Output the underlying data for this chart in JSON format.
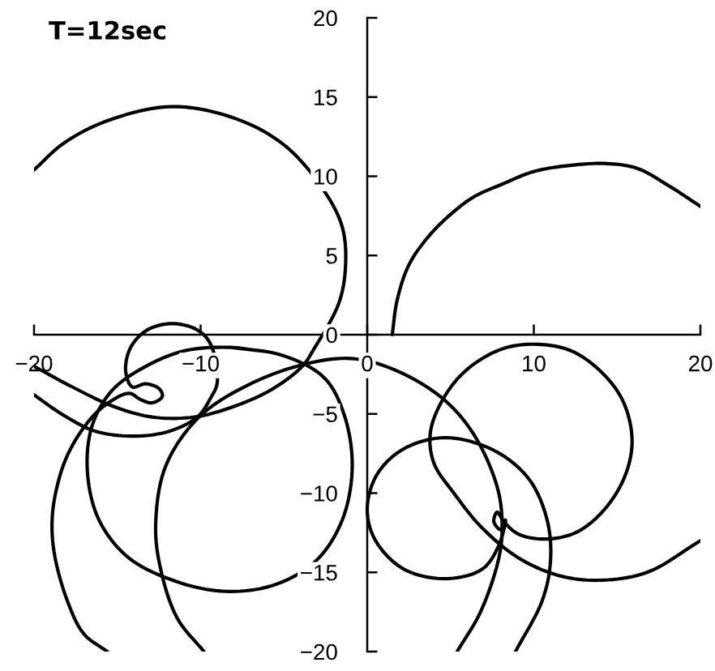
{
  "chart_data": {
    "type": "line",
    "title": "T=12sec",
    "xlim": [
      -20,
      20
    ],
    "ylim": [
      -20,
      20
    ],
    "xticks": [
      -20,
      -10,
      0,
      10,
      20
    ],
    "yticks": [
      -20,
      -15,
      -10,
      -5,
      0,
      5,
      10,
      15,
      20
    ],
    "series": [
      {
        "color": "#000000",
        "x": [
          -20.0,
          -18.2,
          -15.6,
          -11.7,
          -7.8,
          -4.9,
          -2.6,
          -1.5,
          -1.3,
          -1.7,
          -3.2,
          -3.9,
          -5.8,
          -8.2,
          -10.4,
          -12.9,
          -15.3,
          -17.7,
          -20.0
        ],
        "values": [
          10.4,
          12.1,
          13.5,
          14.4,
          13.6,
          11.9,
          9.1,
          6.8,
          4.4,
          2.0,
          -0.9,
          -2.0,
          -3.5,
          -4.6,
          -5.2,
          -5.2,
          -4.5,
          -3.3,
          -2.0
        ]
      },
      {
        "color": "#000000",
        "x": [
          1.5,
          1.8,
          2.5,
          3.6,
          4.9,
          6.4,
          8.1,
          10.0,
          12.3,
          14.4,
          16.2,
          18.1,
          20.0
        ],
        "values": [
          0,
          2.2,
          4.4,
          6.1,
          7.5,
          8.7,
          9.5,
          10.3,
          10.7,
          10.8,
          10.5,
          9.4,
          8.1
        ]
      },
      {
        "color": "#000000",
        "x": [
          -8.2,
          -5.1,
          -2.6,
          -1.4,
          -0.9,
          -1.5,
          -3.1,
          -5.6,
          -8.5,
          -11.4,
          -14.3,
          -16.1,
          -16.8,
          -16.5,
          -15.3,
          -13.3,
          -10.9,
          -8.2,
          -6.6
        ],
        "values": [
          -0.8,
          -1.3,
          -2.7,
          -5.0,
          -8.3,
          -11.7,
          -14.3,
          -15.8,
          -16.2,
          -15.6,
          -14.1,
          -11.7,
          -8.6,
          -5.7,
          -3.5,
          -2.0,
          -1.0,
          -0.8,
          -1.0
        ]
      },
      {
        "color": "#000000",
        "x": [
          -9.8,
          -11.4,
          -12.4,
          -12.7,
          -12.1,
          -10.1,
          -7.2,
          -3.9,
          -1.0,
          1.6,
          4.5,
          6.4,
          7.8,
          8.1,
          7.9,
          6.8,
          5.4
        ],
        "values": [
          -20.0,
          -17.9,
          -14.8,
          -12.0,
          -8.3,
          -5.2,
          -3.2,
          -1.9,
          -1.5,
          -2.2,
          -4.0,
          -6.3,
          -9.6,
          -12.0,
          -14.1,
          -17.5,
          -20.0
        ]
      },
      {
        "color": "#000000",
        "x": [
          20.0,
          16.8,
          13.9,
          11.5,
          9.1,
          6.9,
          5.2,
          4.0,
          3.8,
          4.7,
          6.1,
          8.1,
          10.0,
          12.2,
          14.1,
          15.4,
          15.9,
          15.4,
          14.1,
          12.5,
          10.7,
          9.1,
          8.2,
          7.8,
          7.6,
          8.0,
          8.3,
          7.9,
          6.9,
          4.7,
          2.2,
          0.5,
          0.0,
          0.6,
          2.2,
          4.7,
          7.6,
          9.7,
          10.8,
          11.0,
          10.5,
          8.9
        ],
        "values": [
          -13.0,
          -15.0,
          -15.5,
          -15.2,
          -14.1,
          -12.2,
          -10.0,
          -8.1,
          -6.1,
          -3.8,
          -2.1,
          -0.9,
          -0.6,
          -1.0,
          -2.4,
          -4.3,
          -6.8,
          -9.1,
          -11.2,
          -12.5,
          -12.9,
          -12.6,
          -11.8,
          -11.2,
          -11.8,
          -12.3,
          -11.7,
          -13.3,
          -14.8,
          -15.4,
          -14.8,
          -13.0,
          -11.0,
          -8.8,
          -7.2,
          -6.5,
          -7.3,
          -9.1,
          -11.7,
          -14.3,
          -16.8,
          -20.0
        ]
      },
      {
        "color": "#000000",
        "x": [
          -20.0,
          -18.2,
          -16.3,
          -14.0,
          -11.9,
          -10.2,
          -9.4,
          -9.0,
          -9.4,
          -10.2,
          -11.7,
          -13.2,
          -14.2,
          -14.5,
          -14.1,
          -13.3,
          -12.5,
          -12.3,
          -12.9,
          -13.6,
          -14.3,
          -15.8,
          -16.9,
          -17.9,
          -18.5,
          -18.9,
          -18.8,
          -18.0,
          -17.0,
          -15.6
        ],
        "values": [
          -3.8,
          -5.1,
          -6.1,
          -6.4,
          -6.1,
          -5.2,
          -4.0,
          -3.0,
          -0.6,
          0.3,
          0.7,
          0.3,
          -0.8,
          -2.3,
          -3.3,
          -3.1,
          -3.4,
          -3.9,
          -4.3,
          -4.1,
          -3.7,
          -4.5,
          -5.7,
          -7.4,
          -9.1,
          -11.4,
          -13.7,
          -16.8,
          -18.9,
          -20.0
        ]
      }
    ]
  }
}
